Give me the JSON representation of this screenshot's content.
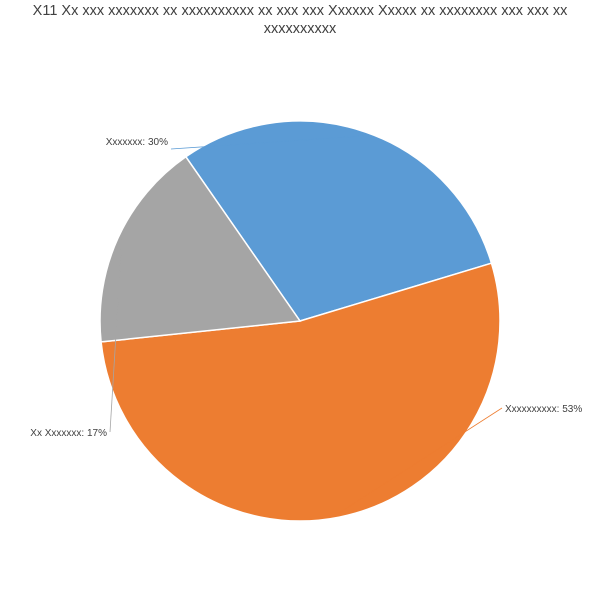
{
  "chart_data": {
    "type": "pie",
    "title": "X11 Xx xxx xxxxxxx xx xxxxxxxxxx xx xxx xxx Xxxxxx Xxxxx xx xxxxxxxx xxx xxx xx xxxxxxxxxx",
    "slices": [
      {
        "label": "Xxxxxxx: 30%",
        "value": 30,
        "color": "#5b9bd5"
      },
      {
        "label": "Xxxxxxxxxx: 53%",
        "value": 53,
        "color": "#ed7d31"
      },
      {
        "label": "Xx Xxxxxxx: 17%",
        "value": 17,
        "color": "#a5a5a5"
      }
    ],
    "legend": "none",
    "slice_border_color": "#ffffff"
  }
}
